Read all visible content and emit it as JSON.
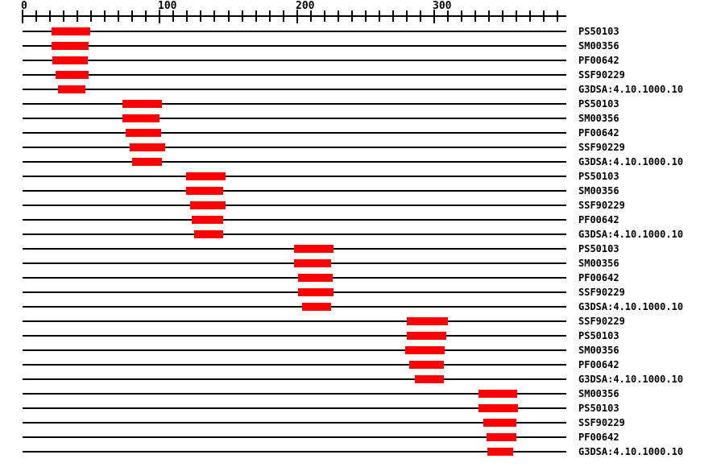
{
  "chart_data": {
    "type": "bar",
    "subtype": "domain-match-span-track",
    "title": "",
    "xlabel": "",
    "ylabel": "",
    "axis": {
      "min": 0,
      "max": 396,
      "major_ticks": [
        0,
        100,
        200,
        300
      ],
      "major_tick_labels": [
        "0",
        "100",
        "200",
        "300"
      ],
      "minor_tick_interval": 10,
      "last_minor_tick": 390,
      "grid": false
    },
    "colors": {
      "bar": "#ff0000",
      "line": "#000000",
      "background": "#ffffff",
      "text": "#000000"
    },
    "rows": [
      {
        "label": "PS50103",
        "start": 21,
        "end": 49
      },
      {
        "label": "SM00356",
        "start": 21,
        "end": 48
      },
      {
        "label": "PF00642",
        "start": 22,
        "end": 48
      },
      {
        "label": "SSF90229",
        "start": 24,
        "end": 48
      },
      {
        "label": "G3DSA:4.10.1000.10",
        "start": 26,
        "end": 46
      },
      {
        "label": "PS50103",
        "start": 73,
        "end": 102
      },
      {
        "label": "SM00356",
        "start": 73,
        "end": 100
      },
      {
        "label": "PF00642",
        "start": 75,
        "end": 101
      },
      {
        "label": "SSF90229",
        "start": 78,
        "end": 104
      },
      {
        "label": "G3DSA:4.10.1000.10",
        "start": 80,
        "end": 102
      },
      {
        "label": "PS50103",
        "start": 119,
        "end": 148
      },
      {
        "label": "SM00356",
        "start": 119,
        "end": 146
      },
      {
        "label": "SSF90229",
        "start": 122,
        "end": 148
      },
      {
        "label": "PF00642",
        "start": 123,
        "end": 146
      },
      {
        "label": "G3DSA:4.10.1000.10",
        "start": 125,
        "end": 146
      },
      {
        "label": "PS50103",
        "start": 198,
        "end": 227
      },
      {
        "label": "SM00356",
        "start": 198,
        "end": 225
      },
      {
        "label": "PF00642",
        "start": 201,
        "end": 226
      },
      {
        "label": "SSF90229",
        "start": 201,
        "end": 227
      },
      {
        "label": "G3DSA:4.10.1000.10",
        "start": 204,
        "end": 225
      },
      {
        "label": "SSF90229",
        "start": 280,
        "end": 310
      },
      {
        "label": "PS50103",
        "start": 280,
        "end": 309
      },
      {
        "label": "SM00356",
        "start": 279,
        "end": 308
      },
      {
        "label": "PF00642",
        "start": 282,
        "end": 307
      },
      {
        "label": "G3DSA:4.10.1000.10",
        "start": 286,
        "end": 307
      },
      {
        "label": "SM00356",
        "start": 332,
        "end": 360
      },
      {
        "label": "PS50103",
        "start": 332,
        "end": 361
      },
      {
        "label": "SSF90229",
        "start": 336,
        "end": 360
      },
      {
        "label": "PF00642",
        "start": 338,
        "end": 360
      },
      {
        "label": "G3DSA:4.10.1000.10",
        "start": 339,
        "end": 358
      }
    ]
  }
}
